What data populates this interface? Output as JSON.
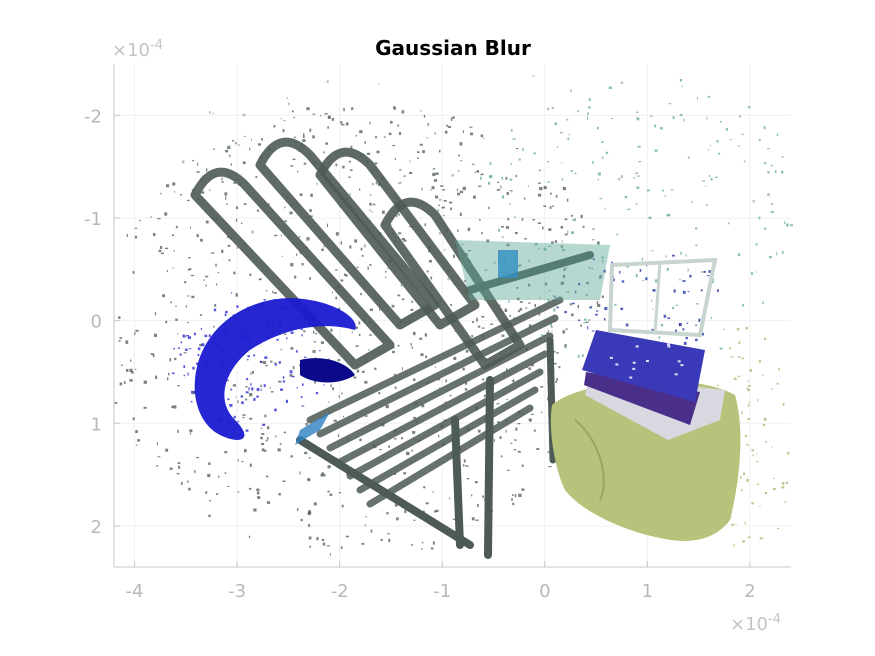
{
  "chart_data": {
    "type": "scatter",
    "title": "Gaussian Blur",
    "xlabel": "",
    "ylabel": "",
    "xlim": [
      -4.2,
      2.4
    ],
    "ylim": [
      -2.5,
      2.4
    ],
    "y_reversed": true,
    "grid": true,
    "x_ticks": [
      -4,
      -3,
      -2,
      -1,
      0,
      1,
      2
    ],
    "y_ticks": [
      -2,
      -1,
      0,
      1,
      2
    ],
    "x_multiplier": {
      "base": "×10",
      "exponent": "-4"
    },
    "y_multiplier": {
      "base": "×10",
      "exponent": "-4"
    },
    "scene": {
      "description_of_marks": "dense colored point cloud (chair, umbrella, books, cloth)",
      "colors": {
        "chair": "#4e5a54",
        "umbrella": "#1a1ad0",
        "umbrella_dark": "#0a0a8a",
        "cloth": "#b7c27a",
        "books": "#3a3ab8",
        "books_light": "#d8d8e0",
        "teal": "#5fa89a",
        "frame": "#c8d4d0"
      }
    }
  }
}
